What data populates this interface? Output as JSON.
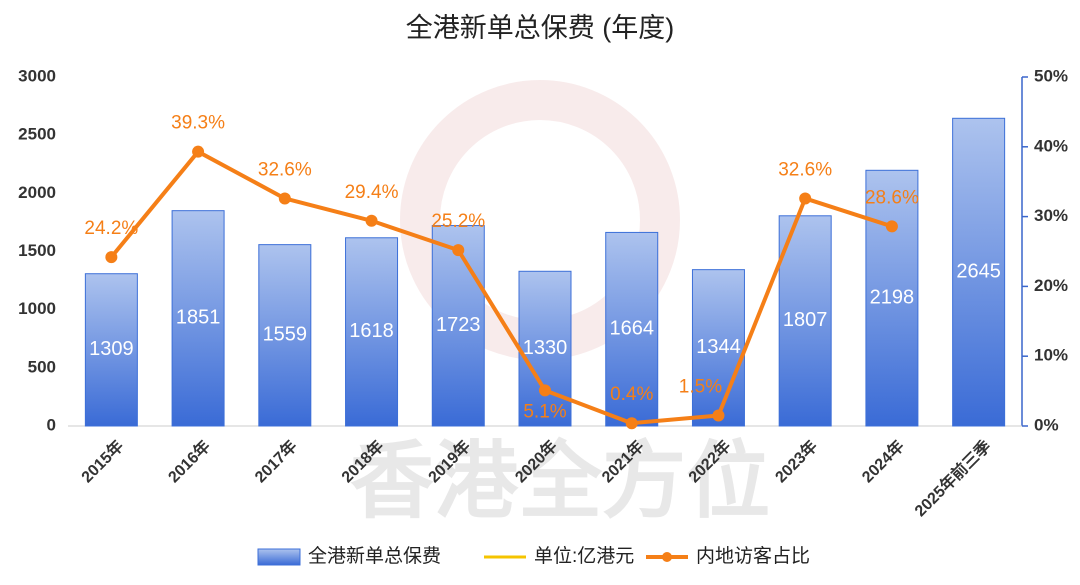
{
  "chart_data": {
    "type": "bar",
    "title": "全港新单总保费 (年度)",
    "watermark": "香港全方位",
    "categories": [
      "2015年",
      "2016年",
      "2017年",
      "2018年",
      "2019年",
      "2020年",
      "2021年",
      "2022年",
      "2023年",
      "2024年",
      "2025年前三季"
    ],
    "series": [
      {
        "name": "全港新单总保费",
        "type": "bar",
        "color": "#3c6fd8",
        "values": [
          1309,
          1851,
          1559,
          1618,
          1723,
          1330,
          1664,
          1344,
          1807,
          2198,
          2645
        ]
      },
      {
        "name": "内地访客占比",
        "type": "line",
        "axis": "y2",
        "color": "#f57f17",
        "values": [
          24.2,
          39.3,
          32.6,
          29.4,
          25.2,
          5.1,
          0.4,
          1.5,
          32.6,
          28.6,
          null
        ],
        "value_labels": [
          "24.2%",
          "39.3%",
          "32.6%",
          "29.4%",
          "25.2%",
          "5.1%",
          "0.4%",
          "1.5%",
          "32.6%",
          "28.6%",
          null
        ]
      }
    ],
    "unit_legend": {
      "name": "单位:亿港元",
      "color": "#f5c400"
    },
    "ylim": [
      0,
      3000
    ],
    "yticks": [
      0,
      500,
      1000,
      1500,
      2000,
      2500,
      3000
    ],
    "y2lim": [
      0,
      50
    ],
    "y2ticks": [
      {
        "value": 0,
        "label": "0%"
      },
      {
        "value": 10,
        "label": "10%"
      },
      {
        "value": 20,
        "label": "20%"
      },
      {
        "value": 30,
        "label": "30%"
      },
      {
        "value": 40,
        "label": "40%"
      },
      {
        "value": 50,
        "label": "50%"
      }
    ]
  }
}
